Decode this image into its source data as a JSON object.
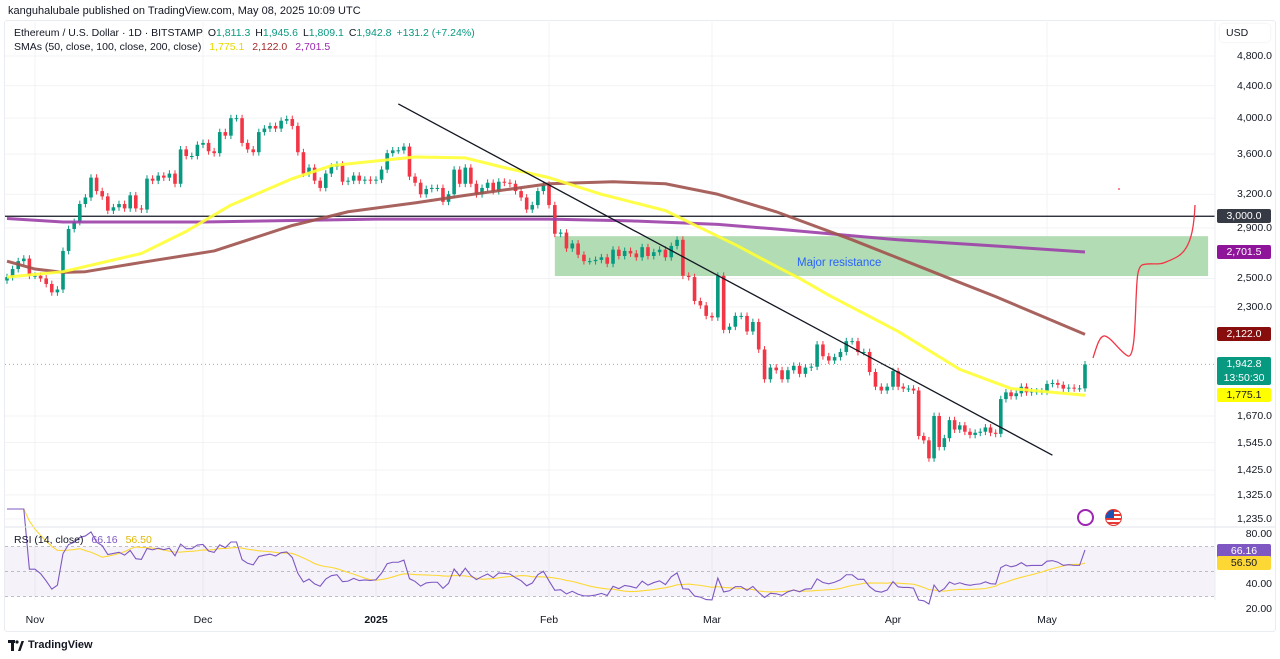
{
  "attribution": "kanguhalubale published on TradingView.com, May 08, 2025 10:09 UTC",
  "legend": {
    "symbol": "Ethereum / U.S. Dollar · 1D · BITSTAMP",
    "o_label": "O",
    "o": "1,811.3",
    "h_label": "H",
    "h": "1,945.6",
    "l_label": "L",
    "l": "1,809.1",
    "c_label": "C",
    "c": "1,942.8",
    "change": "+131.2 (+7.24%)",
    "sma_label": "SMAs (50, close, 100, close, 200, close)",
    "sma50": "1,775.1",
    "sma100": "2,122.0",
    "sma200": "2,701.5"
  },
  "rsi_legend": {
    "label": "RSI (14, close)",
    "rsi": "66.16",
    "ma": "56.50"
  },
  "price_axis": {
    "currency": "USD",
    "scale": "log",
    "ticks": [
      {
        "value": 4800,
        "label": "4,800.0"
      },
      {
        "value": 4400,
        "label": "4,400.0"
      },
      {
        "value": 4000,
        "label": "4,000.0"
      },
      {
        "value": 3600,
        "label": "3,600.0"
      },
      {
        "value": 3200,
        "label": "3,200.0"
      },
      {
        "value": 2900,
        "label": "2,900.0"
      },
      {
        "value": 2500,
        "label": "2,500.0"
      },
      {
        "value": 2300,
        "label": "2,300.0"
      },
      {
        "value": 1670,
        "label": "1,670.0"
      },
      {
        "value": 1545,
        "label": "1,545.0"
      },
      {
        "value": 1425,
        "label": "1,425.0"
      },
      {
        "value": 1325,
        "label": "1,325.0"
      },
      {
        "value": 1235,
        "label": "1,235.0"
      }
    ]
  },
  "price_labels": [
    {
      "name": "horizontal-line",
      "value": 3000,
      "label": "3,000.0",
      "bg": "#363a45",
      "fg": "#ffffff"
    },
    {
      "name": "sma200",
      "value": 2701.5,
      "label": "2,701.5",
      "bg": "#8e1599",
      "fg": "#ffffff"
    },
    {
      "name": "sma100",
      "value": 2122.0,
      "label": "2,122.0",
      "bg": "#880e0e",
      "fg": "#ffffff"
    },
    {
      "name": "last-price",
      "value": 1942.8,
      "label": "1,942.8",
      "countdown": "13:50:30",
      "bg": "#089981",
      "fg": "#ffffff"
    },
    {
      "name": "sma50",
      "value": 1775.1,
      "label": "1,775.1",
      "bg": "#ffff00",
      "fg": "#131722"
    }
  ],
  "rsi_axis": {
    "ticks": [
      {
        "value": 80,
        "label": "80.00"
      },
      {
        "value": 40,
        "label": "40.00"
      },
      {
        "value": 20,
        "label": "20.00"
      }
    ],
    "labels": [
      {
        "name": "rsi",
        "value": 66.16,
        "label": "66.16",
        "bg": "#7e57c2",
        "fg": "#ffffff"
      },
      {
        "name": "rsi-ma",
        "value": 56.5,
        "label": "56.50",
        "bg": "#fdd835",
        "fg": "#131722"
      }
    ],
    "band": [
      30,
      70
    ]
  },
  "time_axis": [
    {
      "label": "Nov",
      "date": "2024-11-01",
      "year": false
    },
    {
      "label": "Dec",
      "date": "2024-12-01",
      "year": false
    },
    {
      "label": "2025",
      "date": "2025-01-01",
      "year": true
    },
    {
      "label": "Feb",
      "date": "2025-02-01",
      "year": false
    },
    {
      "label": "Mar",
      "date": "2025-03-01",
      "year": false
    },
    {
      "label": "Apr",
      "date": "2025-04-01",
      "year": false
    },
    {
      "label": "May",
      "date": "2025-05-01",
      "year": false
    }
  ],
  "annotations": {
    "resistance_label": "Major resistance",
    "resistance_zone": {
      "from": "2025-02-02",
      "to": "2025-06-01",
      "low": 2518,
      "high": 2830,
      "color": "#a5d6a7"
    },
    "horizontal_line": {
      "value": 3000,
      "color": "#131722"
    },
    "trendline": {
      "from": {
        "date": "2025-01-05",
        "price": 4170
      },
      "to": {
        "date": "2025-05-02",
        "price": 1489
      },
      "color": "#131722"
    }
  },
  "footer": {
    "logo": "TradingView"
  },
  "colors": {
    "up": "#089981",
    "down": "#f23645",
    "sma50": "#ffff33",
    "sma100": "#a0524d",
    "sma200": "#9c3fa8",
    "rsi": "#7e57c2",
    "rsi_ma": "#fdd835",
    "projection": "#f23645"
  },
  "chart_data": {
    "type": "candlestick",
    "title": "Ethereum / U.S. Dollar · 1D · BITSTAMP",
    "interval": "1D",
    "first_candle_date": "2024-10-27",
    "ylim": [
      1235,
      4800
    ],
    "yscale": "log",
    "closes": [
      2510,
      2570,
      2630,
      2650,
      2520,
      2520,
      2500,
      2460,
      2400,
      2420,
      2710,
      2890,
      2950,
      3110,
      3170,
      3360,
      3230,
      3180,
      3050,
      3080,
      3110,
      3070,
      3190,
      3070,
      3060,
      3350,
      3330,
      3380,
      3360,
      3400,
      3300,
      3650,
      3580,
      3580,
      3700,
      3720,
      3630,
      3610,
      3840,
      3800,
      4000,
      4000,
      3720,
      3650,
      3620,
      3840,
      3880,
      3910,
      3880,
      3970,
      3990,
      3910,
      3620,
      3400,
      3460,
      3330,
      3260,
      3400,
      3470,
      3490,
      3320,
      3330,
      3380,
      3330,
      3340,
      3330,
      3340,
      3440,
      3610,
      3640,
      3640,
      3680,
      3370,
      3310,
      3200,
      3250,
      3260,
      3260,
      3130,
      3200,
      3440,
      3300,
      3460,
      3300,
      3200,
      3260,
      3310,
      3230,
      3320,
      3310,
      3300,
      3230,
      3170,
      3060,
      3100,
      3230,
      3290,
      3100,
      2850,
      2860,
      2730,
      2770,
      2680,
      2630,
      2630,
      2640,
      2660,
      2610,
      2720,
      2670,
      2710,
      2690,
      2660,
      2740,
      2670,
      2700,
      2720,
      2660,
      2750,
      2800,
      2520,
      2510,
      2340,
      2310,
      2240,
      2230,
      2520,
      2150,
      2170,
      2240,
      2240,
      2140,
      2200,
      2030,
      1860,
      1925,
      1910,
      1860,
      1910,
      1935,
      1890,
      1925,
      1930,
      2060,
      1990,
      1965,
      1985,
      2015,
      2080,
      2080,
      2015,
      2015,
      1900,
      1820,
      1800,
      1820,
      1905,
      1820,
      1810,
      1810,
      1800,
      1575,
      1555,
      1475,
      1670,
      1525,
      1565,
      1650,
      1605,
      1625,
      1595,
      1580,
      1590,
      1595,
      1615,
      1590,
      1585,
      1755,
      1790,
      1770,
      1785,
      1820,
      1790,
      1795,
      1795,
      1795,
      1835,
      1840,
      1830,
      1810,
      1815,
      1811,
      1811,
      1942.8
    ],
    "sma": [
      {
        "name": "SMA 50",
        "color": "#ffff33",
        "points": [
          [
            "2024-10-27",
            2510
          ],
          [
            "2024-11-06",
            2550
          ],
          [
            "2024-11-20",
            2690
          ],
          [
            "2024-11-28",
            2870
          ],
          [
            "2024-12-06",
            3100
          ],
          [
            "2024-12-17",
            3350
          ],
          [
            "2024-12-24",
            3480
          ],
          [
            "2025-01-08",
            3570
          ],
          [
            "2025-01-17",
            3560
          ],
          [
            "2025-01-24",
            3460
          ],
          [
            "2025-02-01",
            3360
          ],
          [
            "2025-02-10",
            3200
          ],
          [
            "2025-02-21",
            3050
          ],
          [
            "2025-02-27",
            2900
          ],
          [
            "2025-03-05",
            2760
          ],
          [
            "2025-03-12",
            2590
          ],
          [
            "2025-03-16",
            2500
          ],
          [
            "2025-03-21",
            2380
          ],
          [
            "2025-04-02",
            2140
          ],
          [
            "2025-04-14",
            1915
          ],
          [
            "2025-04-24",
            1810
          ],
          [
            "2025-05-08",
            1775.1
          ]
        ]
      },
      {
        "name": "SMA 100",
        "color": "#a0524d",
        "points": [
          [
            "2024-10-27",
            2630
          ],
          [
            "2024-11-01",
            2570
          ],
          [
            "2024-11-06",
            2545
          ],
          [
            "2024-11-10",
            2550
          ],
          [
            "2024-11-20",
            2620
          ],
          [
            "2024-12-03",
            2710
          ],
          [
            "2024-12-17",
            2920
          ],
          [
            "2024-12-27",
            3040
          ],
          [
            "2025-01-08",
            3120
          ],
          [
            "2025-01-17",
            3190
          ],
          [
            "2025-02-01",
            3300
          ],
          [
            "2025-02-12",
            3320
          ],
          [
            "2025-02-21",
            3300
          ],
          [
            "2025-03-02",
            3200
          ],
          [
            "2025-03-12",
            3040
          ],
          [
            "2025-03-25",
            2800
          ],
          [
            "2025-04-12",
            2500
          ],
          [
            "2025-04-21",
            2370
          ],
          [
            "2025-05-08",
            2122.0
          ]
        ]
      },
      {
        "name": "SMA 200",
        "color": "#9c3fa8",
        "points": [
          [
            "2024-10-27",
            2980
          ],
          [
            "2024-11-06",
            2950
          ],
          [
            "2024-12-01",
            2950
          ],
          [
            "2025-01-01",
            2975
          ],
          [
            "2025-02-01",
            2975
          ],
          [
            "2025-02-15",
            2960
          ],
          [
            "2025-03-02",
            2930
          ],
          [
            "2025-03-12",
            2890
          ],
          [
            "2025-04-02",
            2800
          ],
          [
            "2025-04-21",
            2750
          ],
          [
            "2025-05-08",
            2701.5
          ]
        ]
      }
    ]
  }
}
